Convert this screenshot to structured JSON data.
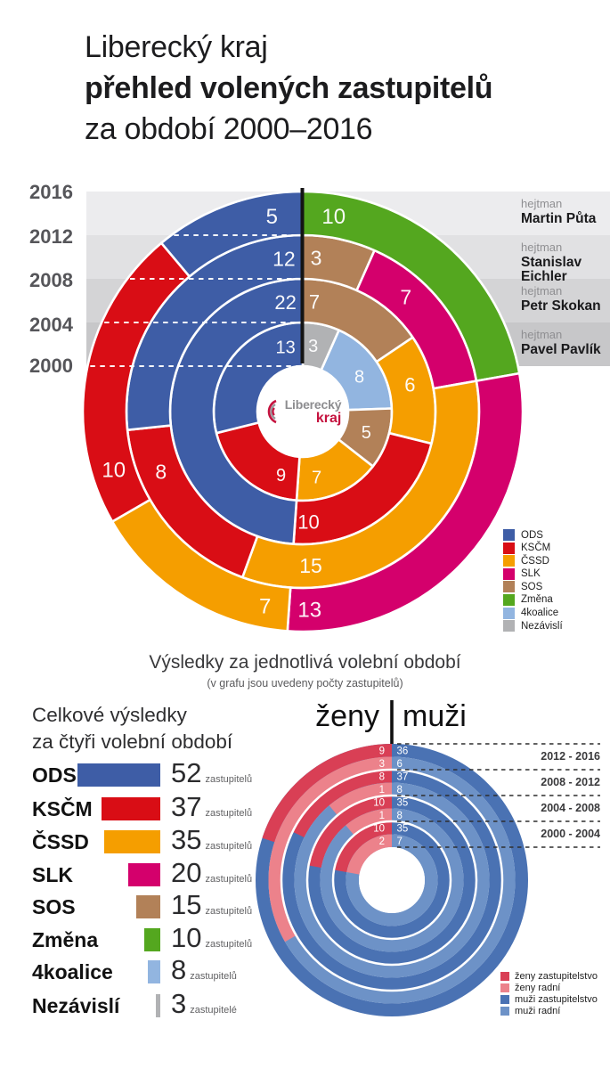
{
  "header": {
    "title_line1": "Liberecký kraj",
    "title_line2": "přehled volených zastupitelů",
    "title_line3": "za období 2000–2016"
  },
  "party_colors": {
    "ODS": "#3e5da6",
    "KSČM": "#d90d15",
    "ČSSD": "#f59e00",
    "SLK": "#d4006c",
    "SOS": "#b28158",
    "Změna": "#54a71f",
    "4koalice": "#92b5e0",
    "Nezávislí": "#b1b2b4"
  },
  "timeline": {
    "years": [
      "2016",
      "2012",
      "2008",
      "2004",
      "2000"
    ],
    "band_colors": [
      "#ececee",
      "#e1e1e3",
      "#d4d4d6",
      "#c7c7c9"
    ],
    "hejtmans": [
      {
        "prefix": "hejtman",
        "name": "Martin Půta"
      },
      {
        "prefix": "hejtman",
        "name": "Stanislav Eichler"
      },
      {
        "prefix": "hejtman",
        "name": "Petr Skokan"
      },
      {
        "prefix": "hejtman",
        "name": "Pavel Pavlík"
      }
    ]
  },
  "results_legend": [
    "ODS",
    "KSČM",
    "ČSSD",
    "SLK",
    "SOS",
    "Změna",
    "4koalice",
    "Nezávislí"
  ],
  "logo": {
    "line1": "Liberecký",
    "line2": "kraj"
  },
  "caption": {
    "main": "Výsledky za jednotlivá volební období",
    "sub": "(v grafu jsou uvedeny počty zastupitelů)"
  },
  "totals": {
    "title_line1": "Celkové výsledky",
    "title_line2": "za čtyři volební období",
    "rows": [
      {
        "party": "ODS",
        "value": 52,
        "unit": "zastupitelů"
      },
      {
        "party": "KSČM",
        "value": 37,
        "unit": "zastupitelů"
      },
      {
        "party": "ČSSD",
        "value": 35,
        "unit": "zastupitelů"
      },
      {
        "party": "SLK",
        "value": 20,
        "unit": "zastupitelů"
      },
      {
        "party": "SOS",
        "value": 15,
        "unit": "zastupitelů"
      },
      {
        "party": "Změna",
        "value": 10,
        "unit": "zastupitelů"
      },
      {
        "party": "4koalice",
        "value": 8,
        "unit": "zastupitelů"
      },
      {
        "party": "Nezávislí",
        "value": 3,
        "unit": "zastupitelé"
      }
    ]
  },
  "gender": {
    "title_left": "ženy",
    "title_right": "muži",
    "period_labels": [
      "2012 - 2016",
      "2008 - 2012",
      "2004 - 2008",
      "2000 - 2004"
    ],
    "legend": [
      {
        "label": "ženy zastupitelstvo",
        "color": "#d93f55"
      },
      {
        "label": "ženy radní",
        "color": "#ec828b"
      },
      {
        "label": "muži zastupitelstvo",
        "color": "#4a72b3"
      },
      {
        "label": "muži radní",
        "color": "#6d92c7"
      }
    ]
  },
  "chart_data": [
    {
      "type": "donut-rings",
      "title": "Výsledky za jednotlivá volební období",
      "note": "(v grafu jsou uvedeny počty zastupitelů)",
      "seats_per_period": 45,
      "rings_inner_to_outer": [
        {
          "period": "2000–2004",
          "hejtman": "Pavel Pavlík",
          "segments": [
            {
              "party": "Nezávislí",
              "value": 3,
              "label_angle": 9
            },
            {
              "party": "4koalice",
              "value": 8,
              "label_angle": 58
            },
            {
              "party": "SOS",
              "value": 5,
              "label_angle": 108
            },
            {
              "party": "ČSSD",
              "value": 7,
              "label_angle": 168
            },
            {
              "party": "KSČM",
              "value": 9,
              "label_angle": 199
            },
            {
              "party": "ODS",
              "value": 13,
              "label_angle": 345
            }
          ]
        },
        {
          "period": "2004–2008",
          "hejtman": "Petr Skokan",
          "segments": [
            {
              "party": "SOS",
              "value": 7,
              "label_angle": 6
            },
            {
              "party": "ČSSD",
              "value": 6,
              "label_angle": 76
            },
            {
              "party": "KSČM",
              "value": 10,
              "label_angle": 177
            },
            {
              "party": "ODS",
              "value": 22,
              "label_angle": 351
            }
          ]
        },
        {
          "period": "2008–2012",
          "hejtman": "Stanislav Eichler",
          "segments": [
            {
              "party": "SOS",
              "value": 3,
              "label_angle": 5
            },
            {
              "party": "SLK",
              "value": 7,
              "label_angle": 42
            },
            {
              "party": "ČSSD",
              "value": 15,
              "label_angle": 177
            },
            {
              "party": "KSČM",
              "value": 8,
              "label_angle": 247
            },
            {
              "party": "ODS",
              "value": 12,
              "label_angle": 353
            }
          ]
        },
        {
          "period": "2012–2016",
          "hejtman": "Martin Půta",
          "segments": [
            {
              "party": "Změna",
              "value": 10,
              "label_angle": 9
            },
            {
              "party": "SLK",
              "value": 13,
              "label_angle": 178
            },
            {
              "party": "ČSSD",
              "value": 7,
              "label_angle": 191
            },
            {
              "party": "KSČM",
              "value": 10,
              "label_angle": 253
            },
            {
              "party": "ODS",
              "value": 5,
              "label_angle": 351
            }
          ]
        }
      ]
    },
    {
      "type": "donut-rings",
      "title": "ženy | muži",
      "rings_outer_to_inner": [
        {
          "period": "2012 - 2016",
          "body": "zastupitelstvo",
          "zeny": 9,
          "muzi": 36
        },
        {
          "period": "2012 - 2016",
          "body": "radní",
          "zeny": 3,
          "muzi": 6
        },
        {
          "period": "2008 - 2012",
          "body": "zastupitelstvo",
          "zeny": 8,
          "muzi": 37
        },
        {
          "period": "2008 - 2012",
          "body": "radní",
          "zeny": 1,
          "muzi": 8
        },
        {
          "period": "2004 - 2008",
          "body": "zastupitelstvo",
          "zeny": 10,
          "muzi": 35
        },
        {
          "period": "2004 - 2008",
          "body": "radní",
          "zeny": 1,
          "muzi": 8
        },
        {
          "period": "2000 - 2004",
          "body": "zastupitelstvo",
          "zeny": 10,
          "muzi": 35
        },
        {
          "period": "2000 - 2004",
          "body": "radní",
          "zeny": 2,
          "muzi": 7
        }
      ]
    },
    {
      "type": "bar",
      "title": "Celkové výsledky za čtyři volební období",
      "categories": [
        "ODS",
        "KSČM",
        "ČSSD",
        "SLK",
        "SOS",
        "Změna",
        "4koalice",
        "Nezávislí"
      ],
      "values": [
        52,
        37,
        35,
        20,
        15,
        10,
        8,
        3
      ]
    }
  ]
}
